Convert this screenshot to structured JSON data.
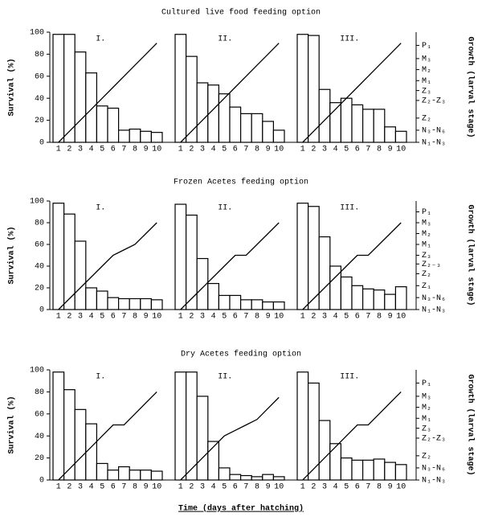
{
  "chart_data": [
    {
      "type": "bar",
      "title": "Cultured live food feeding option",
      "ylabel": "Survival (%)",
      "y2label": "Growth (larval stage)",
      "categories": [
        "1",
        "2",
        "3",
        "4",
        "5",
        "6",
        "7",
        "8",
        "9",
        "10"
      ],
      "ylim": [
        0,
        100
      ],
      "yticks": [
        0,
        20,
        40,
        60,
        80,
        100
      ],
      "y2lim": [
        0,
        100
      ],
      "y2ticks": [
        {
          "value": 0,
          "label": "N₁-N₃"
        },
        {
          "value": 11,
          "label": "N₃-N₆"
        },
        {
          "value": 22,
          "label": "Z₂"
        },
        {
          "value": 38,
          "label": "Z₂-Z₃"
        },
        {
          "value": 47,
          "label": "Z₃"
        },
        {
          "value": 56,
          "label": "M₁"
        },
        {
          "value": 66,
          "label": "M₂"
        },
        {
          "value": 76,
          "label": "M₃"
        },
        {
          "value": 88,
          "label": "P₁"
        }
      ],
      "series": [
        {
          "name": "I.",
          "values": [
            98,
            98,
            82,
            63,
            33,
            31,
            11,
            12,
            10,
            9
          ],
          "growth": [
            0,
            10,
            20,
            30,
            40,
            50,
            60,
            70,
            80,
            90
          ]
        },
        {
          "name": "II.",
          "values": [
            98,
            78,
            54,
            52,
            44,
            32,
            26,
            26,
            19,
            11
          ],
          "growth": [
            0,
            10,
            20,
            30,
            40,
            50,
            60,
            70,
            80,
            90
          ]
        },
        {
          "name": "III.",
          "values": [
            98,
            97,
            48,
            36,
            40,
            34,
            30,
            30,
            14,
            10
          ],
          "growth": [
            0,
            10,
            20,
            30,
            40,
            50,
            60,
            70,
            80,
            90
          ]
        }
      ]
    },
    {
      "type": "bar",
      "title": "Frozen Acetes feeding option",
      "ylabel": "Survival (%)",
      "y2label": "Growth (larval stage)",
      "categories": [
        "1",
        "2",
        "3",
        "4",
        "5",
        "6",
        "7",
        "8",
        "9",
        "10"
      ],
      "ylim": [
        0,
        100
      ],
      "yticks": [
        0,
        20,
        40,
        60,
        80,
        100
      ],
      "y2lim": [
        0,
        100
      ],
      "y2ticks": [
        {
          "value": 0,
          "label": "N₁-N₃"
        },
        {
          "value": 11,
          "label": "N₃-N₆"
        },
        {
          "value": 22,
          "label": "Z₁"
        },
        {
          "value": 33,
          "label": "Z₂"
        },
        {
          "value": 42,
          "label": "Z₂₋₃"
        },
        {
          "value": 50,
          "label": "Z₃"
        },
        {
          "value": 60,
          "label": "M₁"
        },
        {
          "value": 70,
          "label": "M₂"
        },
        {
          "value": 80,
          "label": "M₃"
        },
        {
          "value": 90,
          "label": "P₁"
        }
      ],
      "series": [
        {
          "name": "I.",
          "values": [
            98,
            88,
            63,
            20,
            17,
            11,
            10,
            10,
            10,
            9
          ],
          "growth": [
            0,
            10,
            20,
            30,
            40,
            50,
            55,
            60,
            70,
            80
          ]
        },
        {
          "name": "II.",
          "values": [
            97,
            87,
            47,
            24,
            13,
            13,
            9,
            9,
            7,
            7
          ],
          "growth": [
            0,
            10,
            20,
            30,
            40,
            50,
            50,
            60,
            70,
            80
          ]
        },
        {
          "name": "III.",
          "values": [
            98,
            95,
            67,
            40,
            30,
            22,
            19,
            18,
            14,
            21
          ],
          "growth": [
            0,
            10,
            20,
            30,
            40,
            50,
            50,
            60,
            70,
            80
          ]
        }
      ]
    },
    {
      "type": "bar",
      "title": "Dry Acetes feeding option",
      "ylabel": "Survival (%)",
      "y2label": "Growth (larval stage)",
      "categories": [
        "1",
        "2",
        "3",
        "4",
        "5",
        "6",
        "7",
        "8",
        "9",
        "10"
      ],
      "ylim": [
        0,
        100
      ],
      "yticks": [
        0,
        20,
        40,
        60,
        80,
        100
      ],
      "y2lim": [
        0,
        100
      ],
      "y2ticks": [
        {
          "value": 0,
          "label": "N₁-N₃"
        },
        {
          "value": 11,
          "label": "N₃-N₆"
        },
        {
          "value": 22,
          "label": "Z₂"
        },
        {
          "value": 38,
          "label": "Z₂-Z₃"
        },
        {
          "value": 47,
          "label": "Z₃"
        },
        {
          "value": 56,
          "label": "M₁"
        },
        {
          "value": 66,
          "label": "M₂"
        },
        {
          "value": 76,
          "label": "M₃"
        },
        {
          "value": 88,
          "label": "P₁"
        }
      ],
      "series": [
        {
          "name": "I.",
          "values": [
            98,
            82,
            64,
            51,
            15,
            9,
            12,
            9,
            9,
            8
          ],
          "growth": [
            0,
            10,
            20,
            30,
            40,
            50,
            50,
            60,
            70,
            80
          ]
        },
        {
          "name": "II.",
          "values": [
            98,
            98,
            76,
            35,
            11,
            5,
            4,
            3,
            5,
            3
          ],
          "growth": [
            0,
            10,
            20,
            30,
            40,
            45,
            50,
            55,
            65,
            75
          ]
        },
        {
          "name": "III.",
          "values": [
            98,
            88,
            54,
            33,
            20,
            18,
            18,
            19,
            16,
            14
          ],
          "growth": [
            0,
            10,
            20,
            30,
            40,
            50,
            50,
            60,
            70,
            80
          ]
        }
      ]
    }
  ],
  "xlabel": "Time (days after hatching)"
}
